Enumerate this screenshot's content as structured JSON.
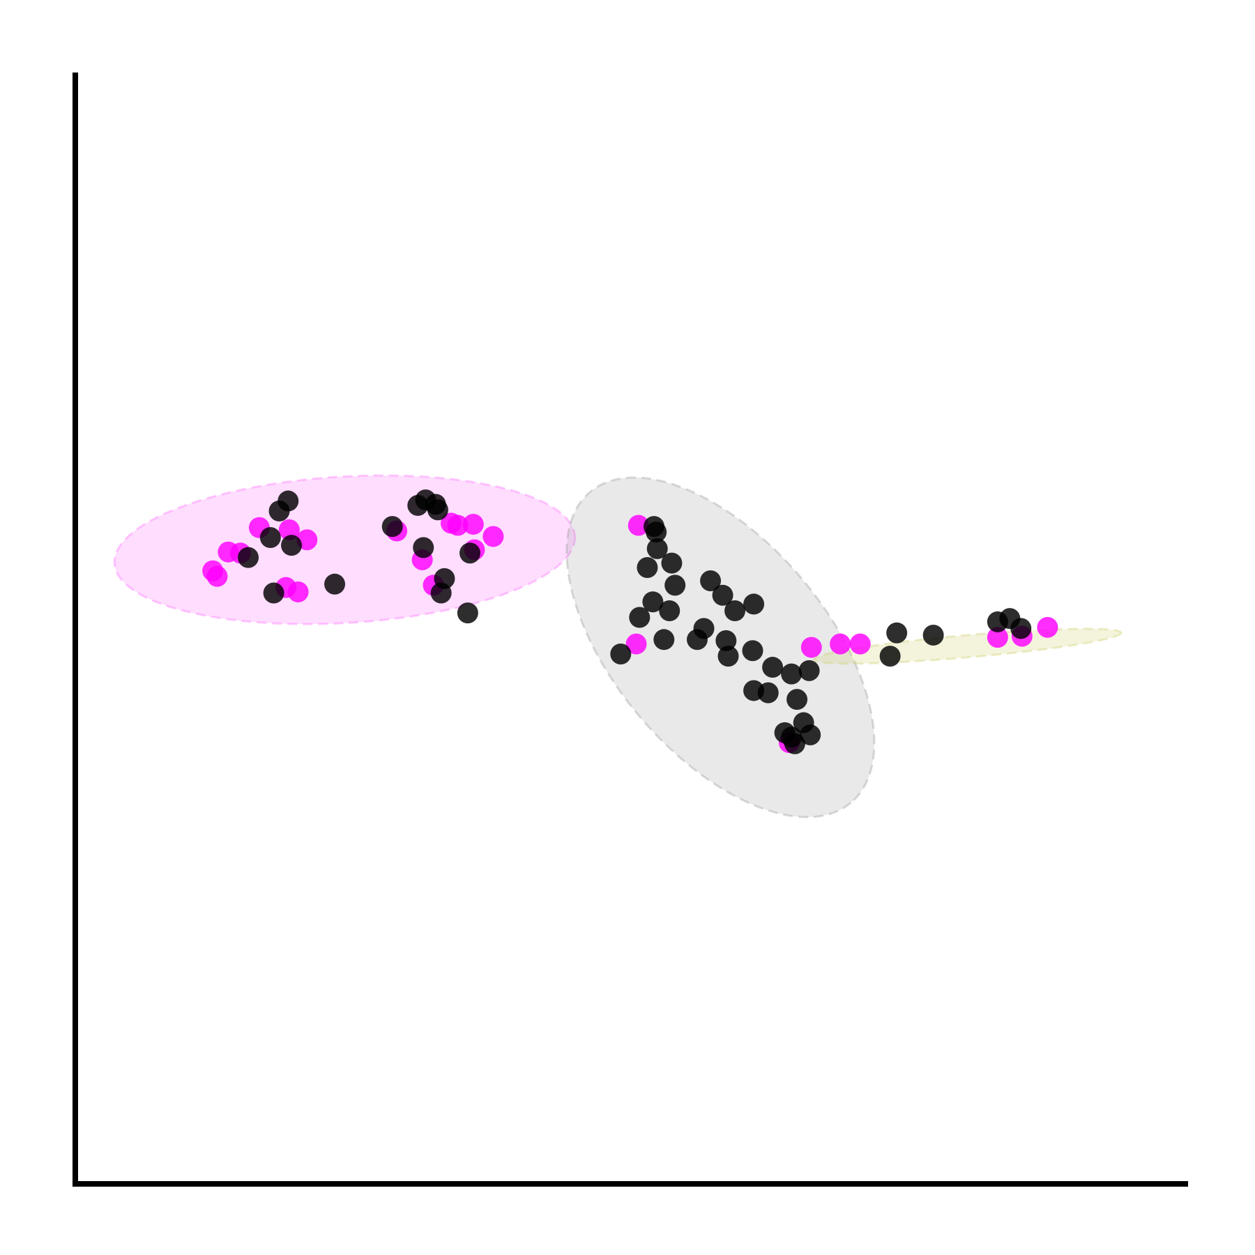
{
  "chart_data": {
    "type": "scatter",
    "title": "",
    "xlabel": "",
    "ylabel": "",
    "xlim": [
      0,
      100
    ],
    "ylim": [
      0,
      100
    ],
    "grid": false,
    "legend": "none",
    "axes": {
      "left_spine": true,
      "bottom_spine": true,
      "ticks": false
    },
    "colors": {
      "magenta": "#ff00ff",
      "black": "#000000",
      "ellipse_pink": "#ff66ff",
      "ellipse_gray": "#999999",
      "ellipse_olive": "#cccc66"
    },
    "ellipses": [
      {
        "cx": 24.3,
        "cy": 57.2,
        "rx": 20.8,
        "ry": 6.6,
        "angle": -3.4,
        "color": "#ff66ff"
      },
      {
        "cx": 58.2,
        "cy": 48.4,
        "rx": 18.3,
        "ry": 9.6,
        "angle": 50,
        "color": "#999999"
      },
      {
        "cx": 80.5,
        "cy": 48.5,
        "rx": 13.9,
        "ry": 1.0,
        "angle": -5,
        "color": "#cccc66"
      }
    ],
    "series": [
      {
        "color": "#ff00ff",
        "points": [
          {
            "x": 12.4,
            "y": 55.3
          },
          {
            "x": 12.8,
            "y": 54.8
          },
          {
            "x": 13.8,
            "y": 57.0
          },
          {
            "x": 14.9,
            "y": 56.9
          },
          {
            "x": 16.6,
            "y": 59.2
          },
          {
            "x": 19.3,
            "y": 59.0
          },
          {
            "x": 20.9,
            "y": 58.1
          },
          {
            "x": 19.0,
            "y": 53.8
          },
          {
            "x": 20.1,
            "y": 53.4
          },
          {
            "x": 29.0,
            "y": 58.9
          },
          {
            "x": 31.3,
            "y": 56.3
          },
          {
            "x": 32.3,
            "y": 54.0
          },
          {
            "x": 33.9,
            "y": 59.6
          },
          {
            "x": 34.5,
            "y": 59.4
          },
          {
            "x": 35.9,
            "y": 59.5
          },
          {
            "x": 36.0,
            "y": 57.2
          },
          {
            "x": 37.7,
            "y": 58.4
          },
          {
            "x": 50.8,
            "y": 59.4
          },
          {
            "x": 50.6,
            "y": 48.7
          },
          {
            "x": 64.4,
            "y": 39.8
          },
          {
            "x": 66.4,
            "y": 48.4
          },
          {
            "x": 69.0,
            "y": 48.7
          },
          {
            "x": 70.8,
            "y": 48.7
          },
          {
            "x": 83.2,
            "y": 49.3
          },
          {
            "x": 85.4,
            "y": 49.4
          },
          {
            "x": 87.7,
            "y": 50.2
          }
        ]
      },
      {
        "color": "#000000",
        "points": [
          {
            "x": 15.6,
            "y": 56.5
          },
          {
            "x": 17.6,
            "y": 58.3
          },
          {
            "x": 18.4,
            "y": 60.7
          },
          {
            "x": 19.2,
            "y": 61.6
          },
          {
            "x": 19.5,
            "y": 57.6
          },
          {
            "x": 17.9,
            "y": 53.3
          },
          {
            "x": 23.4,
            "y": 54.1
          },
          {
            "x": 28.6,
            "y": 59.3
          },
          {
            "x": 30.9,
            "y": 61.2
          },
          {
            "x": 31.6,
            "y": 61.7
          },
          {
            "x": 32.5,
            "y": 61.3
          },
          {
            "x": 32.7,
            "y": 60.8
          },
          {
            "x": 31.4,
            "y": 57.4
          },
          {
            "x": 35.6,
            "y": 56.9
          },
          {
            "x": 33.3,
            "y": 54.6
          },
          {
            "x": 33.0,
            "y": 53.3
          },
          {
            "x": 35.4,
            "y": 51.5
          },
          {
            "x": 52.2,
            "y": 59.3
          },
          {
            "x": 52.4,
            "y": 58.8
          },
          {
            "x": 52.5,
            "y": 57.3
          },
          {
            "x": 51.6,
            "y": 55.6
          },
          {
            "x": 53.8,
            "y": 56.0
          },
          {
            "x": 54.1,
            "y": 54.0
          },
          {
            "x": 57.3,
            "y": 54.4
          },
          {
            "x": 58.4,
            "y": 53.1
          },
          {
            "x": 59.5,
            "y": 51.7
          },
          {
            "x": 61.2,
            "y": 52.3
          },
          {
            "x": 52.1,
            "y": 52.5
          },
          {
            "x": 53.6,
            "y": 51.7
          },
          {
            "x": 50.9,
            "y": 51.1
          },
          {
            "x": 56.7,
            "y": 50.1
          },
          {
            "x": 56.1,
            "y": 49.1
          },
          {
            "x": 58.7,
            "y": 49.0
          },
          {
            "x": 58.9,
            "y": 47.6
          },
          {
            "x": 53.1,
            "y": 49.1
          },
          {
            "x": 49.2,
            "y": 47.8
          },
          {
            "x": 61.1,
            "y": 48.1
          },
          {
            "x": 62.9,
            "y": 46.6
          },
          {
            "x": 64.6,
            "y": 46.0
          },
          {
            "x": 66.2,
            "y": 46.3
          },
          {
            "x": 61.2,
            "y": 44.5
          },
          {
            "x": 62.5,
            "y": 44.3
          },
          {
            "x": 65.1,
            "y": 43.7
          },
          {
            "x": 65.7,
            "y": 41.6
          },
          {
            "x": 64.0,
            "y": 40.7
          },
          {
            "x": 66.3,
            "y": 40.5
          },
          {
            "x": 64.9,
            "y": 39.7
          },
          {
            "x": 64.6,
            "y": 40.3
          },
          {
            "x": 74.1,
            "y": 49.7
          },
          {
            "x": 77.4,
            "y": 49.5
          },
          {
            "x": 73.5,
            "y": 47.6
          },
          {
            "x": 83.2,
            "y": 50.7
          },
          {
            "x": 84.3,
            "y": 51.0
          },
          {
            "x": 85.3,
            "y": 50.1
          }
        ]
      }
    ]
  }
}
